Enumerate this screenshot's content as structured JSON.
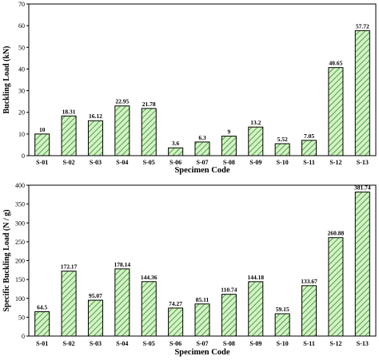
{
  "chart_data": [
    {
      "type": "bar",
      "title": "",
      "xlabel": "Specimen Code",
      "ylabel": "Buckling Load (kN)",
      "ylim": [
        0,
        70
      ],
      "yticks": [
        0,
        10,
        20,
        30,
        40,
        50,
        60,
        70
      ],
      "grid": false,
      "categories": [
        "S-01",
        "S-02",
        "S-03",
        "S-04",
        "S-05",
        "S-06",
        "S-07",
        "S-08",
        "S-09",
        "S-10",
        "S-11",
        "S-12",
        "S-13"
      ],
      "values": [
        10,
        18.31,
        16.12,
        22.95,
        21.78,
        3.6,
        6.3,
        9,
        13.2,
        5.52,
        7.05,
        40.65,
        57.72
      ],
      "value_labels": [
        "10",
        "18.31",
        "16.12",
        "22.95",
        "21.78",
        "3.6",
        "6.3",
        "9",
        "13.2",
        "5.52",
        "7.05",
        "40.65",
        "57.72"
      ],
      "bar_fill": "#d4f2c4",
      "bar_hatch": "#2e8b2e",
      "bar_edge": "#000000"
    },
    {
      "type": "bar",
      "title": "",
      "xlabel": "Specimen Code",
      "ylabel": "Specific Buckling Load (N / g)",
      "ylim": [
        0,
        400
      ],
      "yticks": [
        0,
        50,
        100,
        150,
        200,
        250,
        300,
        350,
        400
      ],
      "grid": false,
      "categories": [
        "S-01",
        "S-02",
        "S-03",
        "S-04",
        "S-05",
        "S-06",
        "S-07",
        "S-08",
        "S-09",
        "S-10",
        "S-11",
        "S-12",
        "S-13"
      ],
      "values": [
        64.5,
        172.17,
        95.07,
        178.14,
        144.36,
        74.27,
        85.11,
        110.74,
        144.18,
        59.15,
        133.67,
        260.88,
        381.74
      ],
      "value_labels": [
        "64.5",
        "172.17",
        "95.07",
        "178.14",
        "144.36",
        "74.27",
        "85.11",
        "110.74",
        "144.18",
        "59.15",
        "133.67",
        "260.88",
        "381.74"
      ],
      "bar_fill": "#d4f2c4",
      "bar_hatch": "#2e8b2e",
      "bar_edge": "#000000"
    }
  ]
}
